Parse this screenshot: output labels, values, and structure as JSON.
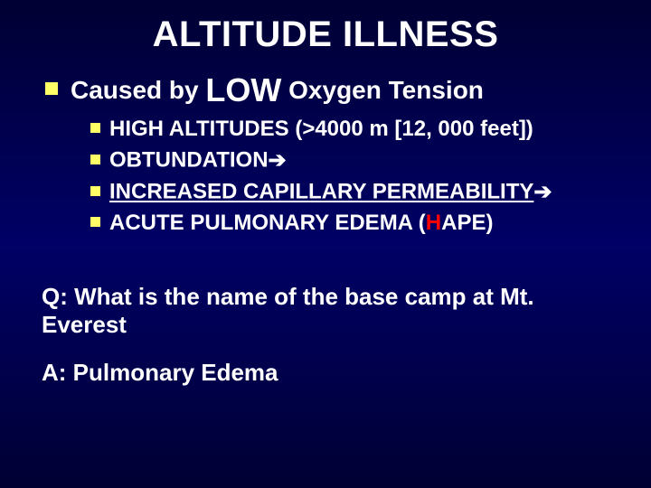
{
  "colors": {
    "background_top": "#000033",
    "background_mid": "#000066",
    "text": "#ffffff",
    "bullet": "#ffff66",
    "accent_red": "#ff0000"
  },
  "title": {
    "text": "ALTITUDE ILLNESS",
    "fontsize": 40,
    "color": "#ffffff"
  },
  "level1": {
    "prefix": "Caused by ",
    "emph": "LOW",
    "suffix": " Oxygen Tension",
    "fontsize_normal": 28,
    "fontsize_emph": 36
  },
  "sub_items": [
    {
      "segments": [
        {
          "text": "HIGH ALTITUDES (>4000 m [12, 000 feet])"
        }
      ]
    },
    {
      "segments": [
        {
          "text": "OBTUNDATION"
        },
        {
          "text": "➔",
          "class": "arrow"
        }
      ]
    },
    {
      "segments": [
        {
          "text": "INCREASED CAPILLARY PERMEABILITY",
          "underline": true
        },
        {
          "text": "➔",
          "class": "arrow"
        }
      ]
    },
    {
      "segments": [
        {
          "text": "ACUTE PULMONARY EDEMA ("
        },
        {
          "text": "H",
          "color": "#ff0000"
        },
        {
          "text": "APE)"
        }
      ]
    }
  ],
  "sub_fontsize": 24,
  "question": {
    "text": "Q: What is the name of the base camp at Mt. Everest",
    "fontsize": 26
  },
  "answer": {
    "text": "A: Pulmonary Edema",
    "fontsize": 26
  }
}
